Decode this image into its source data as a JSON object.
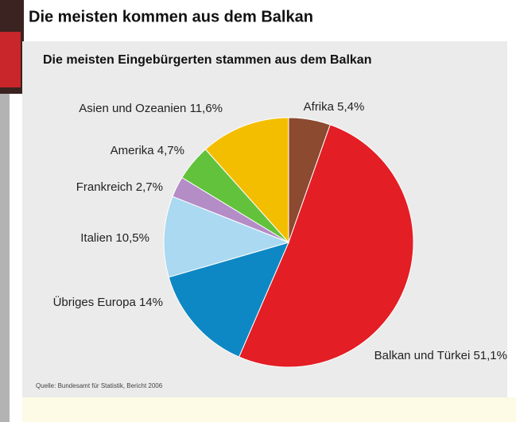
{
  "chart_data": {
    "type": "pie",
    "title": "Die meisten kommen aus dem Balkan",
    "subtitle": "Die meisten Eingebürgerten stammen aus dem Balkan",
    "source": "Quelle: Bundesamt für Statistik, Bericht 2006",
    "categories": [
      "Afrika",
      "Balkan und Türkei",
      "Übriges Europa",
      "Italien",
      "Frankreich",
      "Amerika",
      "Asien und Ozeanien"
    ],
    "values": [
      5.4,
      51.1,
      14,
      10.5,
      2.7,
      4.7,
      11.6
    ],
    "value_labels": [
      "5,4%",
      "51,1%",
      "14%",
      "10,5%",
      "2,7%",
      "4,7%",
      "11,6%"
    ],
    "colors": [
      "#8c4a30",
      "#e31e24",
      "#0e88c4",
      "#aad9f1",
      "#b48cc6",
      "#62c23c",
      "#f4be00"
    ]
  }
}
